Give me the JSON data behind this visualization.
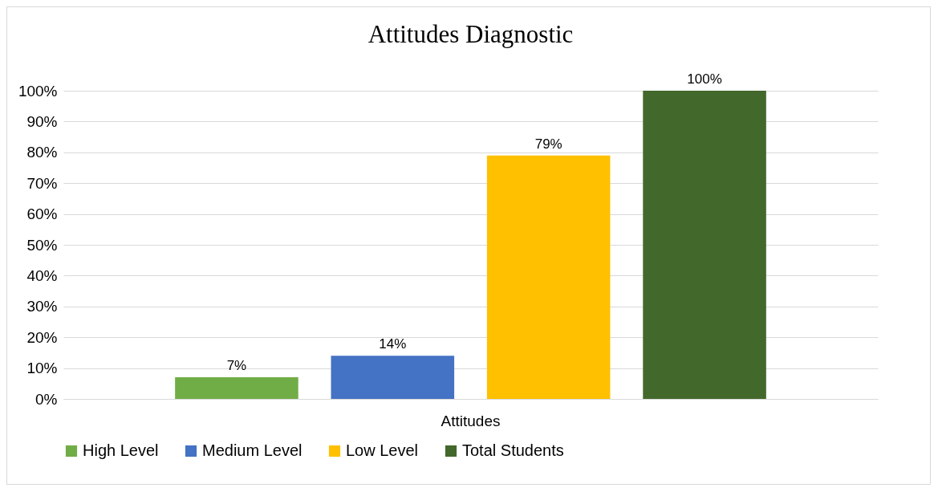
{
  "chart_data": {
    "type": "bar",
    "title": "Attitudes Diagnostic",
    "categories": [
      "Attitudes"
    ],
    "series": [
      {
        "name": "High Level",
        "color": "#70ad47",
        "values": [
          7
        ],
        "value_labels": [
          "7%"
        ]
      },
      {
        "name": "Medium Level",
        "color": "#4472c4",
        "values": [
          14
        ],
        "value_labels": [
          "14%"
        ]
      },
      {
        "name": "Low Level",
        "color": "#ffc000",
        "values": [
          79
        ],
        "value_labels": [
          "79%"
        ]
      },
      {
        "name": "Total Students",
        "color": "#43682b",
        "values": [
          100
        ],
        "value_labels": [
          "100%"
        ]
      }
    ],
    "ylim": [
      0,
      100
    ],
    "yticks": [
      {
        "value": 0,
        "label": "0%"
      },
      {
        "value": 10,
        "label": "10%"
      },
      {
        "value": 20,
        "label": "20%"
      },
      {
        "value": 30,
        "label": "30%"
      },
      {
        "value": 40,
        "label": "40%"
      },
      {
        "value": 50,
        "label": "50%"
      },
      {
        "value": 60,
        "label": "60%"
      },
      {
        "value": 70,
        "label": "70%"
      },
      {
        "value": 80,
        "label": "80%"
      },
      {
        "value": 90,
        "label": "90%"
      },
      {
        "value": 100,
        "label": "100%"
      }
    ],
    "grid": "y",
    "legend": "bottom"
  }
}
